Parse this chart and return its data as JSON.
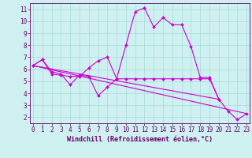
{
  "xlabel": "Windchill (Refroidissement éolien,°C)",
  "bg_color": "#cff0f0",
  "grid_color": "#aadddd",
  "line_color": "#cc00cc",
  "hours": [
    0,
    1,
    2,
    3,
    4,
    5,
    6,
    7,
    8,
    9,
    10,
    11,
    12,
    13,
    14,
    15,
    16,
    17,
    18,
    19,
    20,
    21,
    22,
    23
  ],
  "series1": [
    6.3,
    6.8,
    5.6,
    5.5,
    5.4,
    5.4,
    6.1,
    6.7,
    7.0,
    5.2,
    8.0,
    10.8,
    11.1,
    9.5,
    10.3,
    9.7,
    9.7,
    7.9,
    5.3,
    5.3,
    3.5,
    2.5,
    1.8,
    2.3
  ],
  "series2": [
    6.3,
    6.8,
    5.8,
    5.6,
    4.7,
    5.5,
    5.4,
    3.8,
    4.5,
    5.2,
    5.2,
    5.2,
    5.2,
    5.2,
    5.2,
    5.2,
    5.2,
    5.2,
    5.2,
    5.2,
    3.5,
    null,
    null,
    null
  ],
  "series2_end": 20,
  "series3_x": [
    0,
    23
  ],
  "series3_y": [
    6.3,
    2.3
  ],
  "series4_x": [
    0,
    20
  ],
  "series4_y": [
    6.3,
    3.5
  ],
  "ylim": [
    1.5,
    11.5
  ],
  "xlim": [
    -0.3,
    23.3
  ],
  "yticks": [
    2,
    3,
    4,
    5,
    6,
    7,
    8,
    9,
    10,
    11
  ],
  "xticks": [
    0,
    1,
    2,
    3,
    4,
    5,
    6,
    7,
    8,
    9,
    10,
    11,
    12,
    13,
    14,
    15,
    16,
    17,
    18,
    19,
    20,
    21,
    22,
    23
  ],
  "tick_color": "#660066",
  "spine_color": "#660066",
  "marker": "D",
  "markersize": 2.0,
  "linewidth": 0.8,
  "tick_fontsize": 5.5,
  "xlabel_fontsize": 6.0
}
